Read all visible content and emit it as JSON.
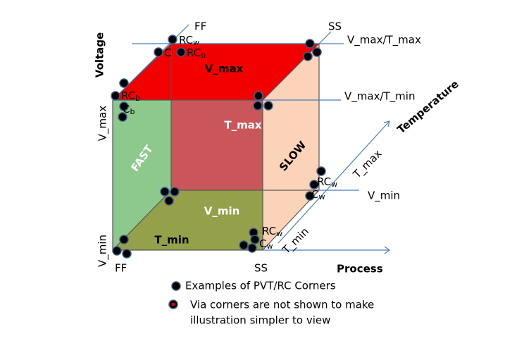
{
  "axes": {
    "voltage": "Voltage",
    "process": "Process",
    "temperature": "Temperature"
  },
  "axis_labels": {
    "v_max_left": "V_max",
    "v_min_left": "V_min",
    "ff_bottom": "FF",
    "ss_bottom": "SS",
    "ff_top": "FF",
    "ss_top": "SS",
    "v_max_t_max": "V_max/T_max",
    "v_max_t_min": "V_max/T_min",
    "t_max_right": "T_max",
    "v_min_right": "V_min",
    "t_min_right": "T_min"
  },
  "face_labels": {
    "fast": "FAST",
    "slow": "SLOW",
    "t_max": "T_max",
    "v_max": "V_max",
    "v_min": "V_min",
    "t_min": "T_min"
  },
  "corner_labels": {
    "top_rcw": {
      "base": "RC",
      "sub": "w"
    },
    "top_c": {
      "base": "C"
    },
    "top_rcb": {
      "base": "RC",
      "sub": "b"
    },
    "left_rcb": {
      "base": "RC",
      "sub": "b"
    },
    "left_cb": {
      "base": "C",
      "sub": "b"
    },
    "right_rcw": {
      "base": "RC",
      "sub": "w"
    },
    "right_cw": {
      "base": "C",
      "sub": "w"
    },
    "bottom_rcw": {
      "base": "RC",
      "sub": "w"
    },
    "bottom_cw": {
      "base": "C",
      "sub": "w"
    }
  },
  "legend": {
    "corners": "Examples of PVT/RC Corners",
    "via_line1": "Via corners are not shown to make",
    "via_line2": "illustration simpler to view"
  }
}
